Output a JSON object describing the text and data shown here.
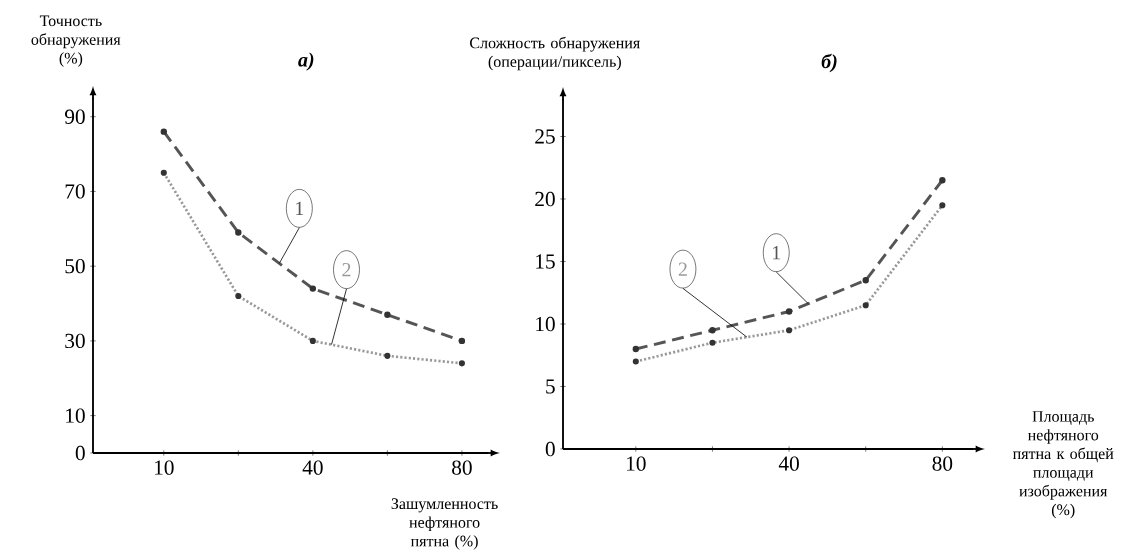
{
  "chart_data": [
    {
      "type": "line",
      "title": "а)",
      "ylabel": "Точность обнаружения (%)",
      "xlabel": "Зашумленность нефтяного пятна (%)",
      "categories": [
        "10",
        null,
        "40",
        null,
        "80"
      ],
      "ylim": [
        0,
        95
      ],
      "yticks": [
        0,
        10,
        30,
        50,
        70,
        90
      ],
      "marker": "circle",
      "series": [
        {
          "name": "1",
          "color": "#555555",
          "line_style": "dashed",
          "values": [
            86,
            59,
            44,
            37,
            30
          ]
        },
        {
          "name": "2",
          "color": "#999999",
          "line_style": "dotted",
          "values": [
            75,
            42,
            30,
            26,
            24
          ]
        }
      ]
    },
    {
      "type": "line",
      "title": "б)",
      "ylabel": "Сложность обнаружения (операции/пиксель)",
      "xlabel": "Площадь нефтяного пятна к общей площади изображения (%)",
      "categories": [
        "10",
        null,
        "40",
        null,
        "80"
      ],
      "ylim": [
        0,
        28
      ],
      "yticks": [
        0,
        5,
        10,
        15,
        20,
        25
      ],
      "marker": "circle",
      "series": [
        {
          "name": "1",
          "color": "#555555",
          "line_style": "dashed",
          "values": [
            8,
            9.5,
            11,
            13.5,
            21.5
          ]
        },
        {
          "name": "2",
          "color": "#999999",
          "line_style": "dotted",
          "values": [
            7,
            8.5,
            9.5,
            11.5,
            19.5
          ]
        }
      ]
    }
  ]
}
